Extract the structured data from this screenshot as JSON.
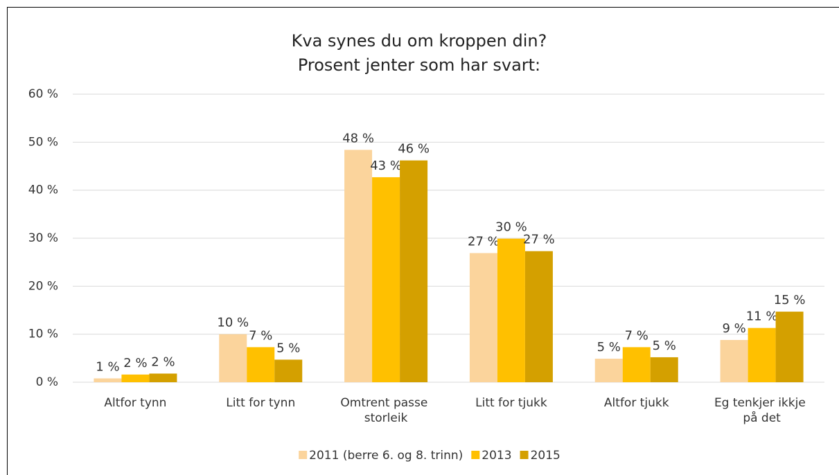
{
  "chart_data": {
    "type": "bar",
    "title": [
      "Kva synes du om kroppen din?",
      "Prosent jenter som har svart:"
    ],
    "categories": [
      "Altfor tynn",
      "Litt for tynn",
      "Omtrent passe storleik",
      "Litt for tjukk",
      "Altfor tjukk",
      "Eg tenkjer ikkje på det"
    ],
    "series": [
      {
        "name": "2011 (berre 6. og 8. trinn)",
        "color": "#fbd49c",
        "values": [
          0.8,
          10,
          48.4,
          26.9,
          4.9,
          8.8
        ],
        "value_labels": [
          "1 %",
          "10 %",
          "48 %",
          "27 %",
          "5 %",
          "9 %"
        ]
      },
      {
        "name": "2013",
        "color": "#ffc000",
        "values": [
          1.6,
          7.3,
          42.7,
          29.9,
          7.3,
          11.3
        ],
        "value_labels": [
          "2 %",
          "7 %",
          "43 %",
          "30 %",
          "7 %",
          "11 %"
        ]
      },
      {
        "name": "2015",
        "color": "#d4a000",
        "values": [
          1.8,
          4.7,
          46.2,
          27.3,
          5.2,
          14.7
        ],
        "value_labels": [
          "2 %",
          "5 %",
          "46 %",
          "27 %",
          "5 %",
          "15 %"
        ]
      }
    ],
    "ylim": [
      0,
      60
    ],
    "yticks": [
      {
        "value": 0,
        "label": "0 %"
      },
      {
        "value": 10,
        "label": "10 %"
      },
      {
        "value": 20,
        "label": "20 %"
      },
      {
        "value": 30,
        "label": "30 %"
      },
      {
        "value": 40,
        "label": "40 %"
      },
      {
        "value": 50,
        "label": "50 %"
      },
      {
        "value": 60,
        "label": "60 %"
      }
    ],
    "grid": true,
    "legend": "bottom"
  }
}
